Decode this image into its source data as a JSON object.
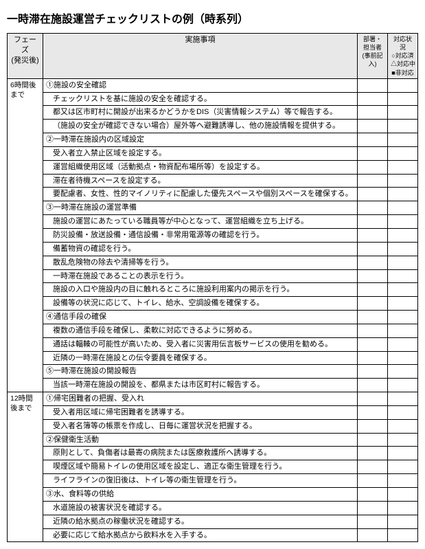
{
  "title": "一時滞在施設運営チェックリストの例（時系列）",
  "headers": {
    "phase": "フェーズ",
    "phase_sub": "(発災後)",
    "item": "実施事項",
    "dept": "部署・担当者",
    "dept_sub": "(事前記入)",
    "status": "対応状況",
    "status_opts": "○対応済\n△対応中\n■非対応"
  },
  "phases": [
    {
      "label": "6時間後まで",
      "groups": [
        {
          "head": "①施設の安全確認",
          "items": [
            "チェックリストを基に施設の安全を確認する。",
            "都又は区市町村に開設が出来るかどうかをDIS（災害情報システム）等で報告する。",
            "（施設の安全が確認できない場合）屋外等へ避難誘導し、他の施設情報を提供する。"
          ]
        },
        {
          "head": "②一時滞在施設内の区域設定",
          "items": [
            "受入者立入禁止区域を設定する。",
            "運営組織使用区域（活動拠点・物資配布場所等）を設定する。",
            "滞在者待機スペースを設定する。",
            "要配慮者、女性、性的マイノリティに配慮した優先スペースや個別スペースを確保する。"
          ]
        },
        {
          "head": "③一時滞在施設の運営準備",
          "items": [
            "施設の運営にあたっている職員等が中心となって、運営組織を立ち上げる。",
            "防災設備・放送設備・通信設備・非常用電源等の確認を行う。",
            "備蓄物資の確認を行う。",
            "散乱危険物の除去や清掃等を行う。",
            "一時滞在施設であることの表示を行う。",
            "施設の入口や施設内の目に触れるところに施設利用案内の掲示を行う。",
            "設備等の状況に応じて、トイレ、給水、空調設備を確保する。"
          ]
        },
        {
          "head": "④通信手段の確保",
          "items": [
            "複数の通信手段を確保し、柔軟に対応できるように努める。",
            "通話は輻輳の可能性が高いため、受入者に災害用伝言板サービスの使用を勧める。",
            "近隣の一時滞在施設との伝令要員を確保する。"
          ]
        },
        {
          "head": "⑤一時滞在施設の開設報告",
          "items": [
            "当該一時滞在施設の開設を、都県または市区町村に報告する。"
          ]
        }
      ]
    },
    {
      "label": "12時間後まで",
      "groups": [
        {
          "head": "①帰宅困難者の把握、受入れ",
          "items": [
            "受入者用区域に帰宅困難者を誘導する。",
            "受入者名簿等の帳票を作成し、日毎に運営状況を把握する。"
          ]
        },
        {
          "head": "②保健衛生活動",
          "items": [
            "原則として、負傷者は最寄の病院または医療救護所へ誘導する。",
            "喫煙区域や簡易トイレの使用区域を設定し、適正な衛生管理を行う。",
            "ライフラインの復旧後は、トイレ等の衛生管理を行う。"
          ]
        },
        {
          "head": "③水、食料等の供給",
          "items": [
            "水道施設の被害状況を確認する。",
            "近隣の給水拠点の稼働状況を確認する。",
            "必要に応じて給水拠点から飲料水を入手する。"
          ]
        }
      ]
    }
  ]
}
